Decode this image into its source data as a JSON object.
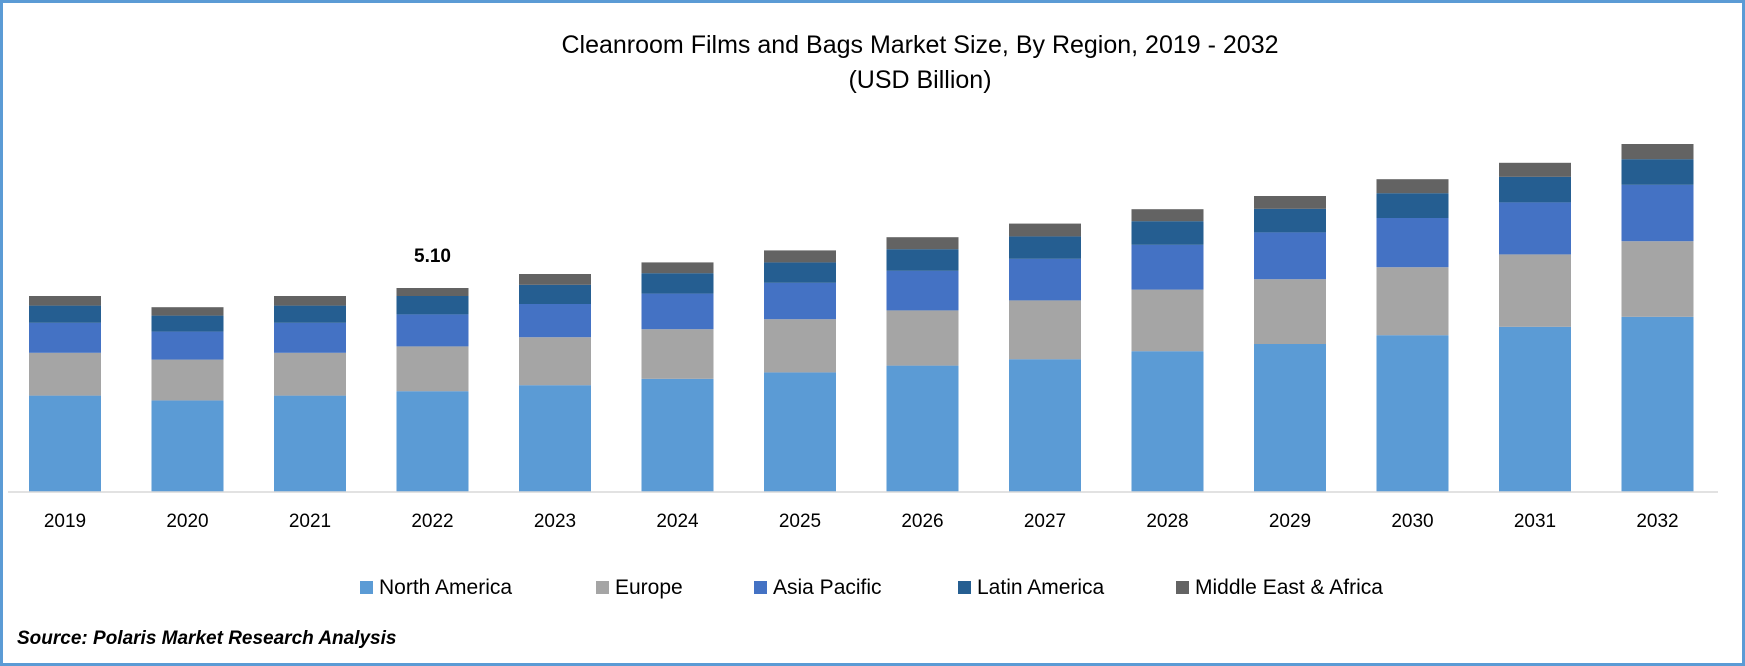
{
  "chart_data": {
    "type": "bar",
    "stacked": true,
    "title": "Cleanroom Films and Bags Market Size, By Region, 2019 - 2032",
    "subtitle": "(USD Billion)",
    "xlabel": "",
    "ylabel": "",
    "categories": [
      "2019",
      "2020",
      "2021",
      "2022",
      "2023",
      "2024",
      "2025",
      "2026",
      "2027",
      "2028",
      "2029",
      "2030",
      "2031",
      "2032"
    ],
    "series": [
      {
        "name": "North America",
        "color": "#5b9bd5",
        "values": [
          2.41,
          2.29,
          2.41,
          2.52,
          2.67,
          2.83,
          2.99,
          3.16,
          3.32,
          3.52,
          3.7,
          3.92,
          4.13,
          4.38
        ]
      },
      {
        "name": "Europe",
        "color": "#a5a5a5",
        "values": [
          1.07,
          1.02,
          1.07,
          1.12,
          1.2,
          1.24,
          1.33,
          1.38,
          1.47,
          1.54,
          1.62,
          1.7,
          1.81,
          1.89
        ]
      },
      {
        "name": "Asia Pacific",
        "color": "#4472c4",
        "values": [
          0.75,
          0.7,
          0.75,
          0.8,
          0.83,
          0.89,
          0.91,
          0.99,
          1.04,
          1.12,
          1.17,
          1.23,
          1.3,
          1.41
        ]
      },
      {
        "name": "Latin America",
        "color": "#255e91",
        "values": [
          0.43,
          0.4,
          0.43,
          0.46,
          0.48,
          0.51,
          0.51,
          0.54,
          0.56,
          0.59,
          0.59,
          0.62,
          0.64,
          0.64
        ]
      },
      {
        "name": "Middle East & Africa",
        "color": "#636363",
        "values": [
          0.24,
          0.21,
          0.24,
          0.2,
          0.27,
          0.27,
          0.3,
          0.3,
          0.32,
          0.3,
          0.32,
          0.35,
          0.35,
          0.38
        ]
      }
    ],
    "annotations": [
      {
        "category": "2022",
        "label": "5.10"
      }
    ],
    "ylim": [
      0,
      9
    ],
    "grid": false,
    "legend": "bottom"
  },
  "source": "Source: Polaris Market Research Analysis"
}
